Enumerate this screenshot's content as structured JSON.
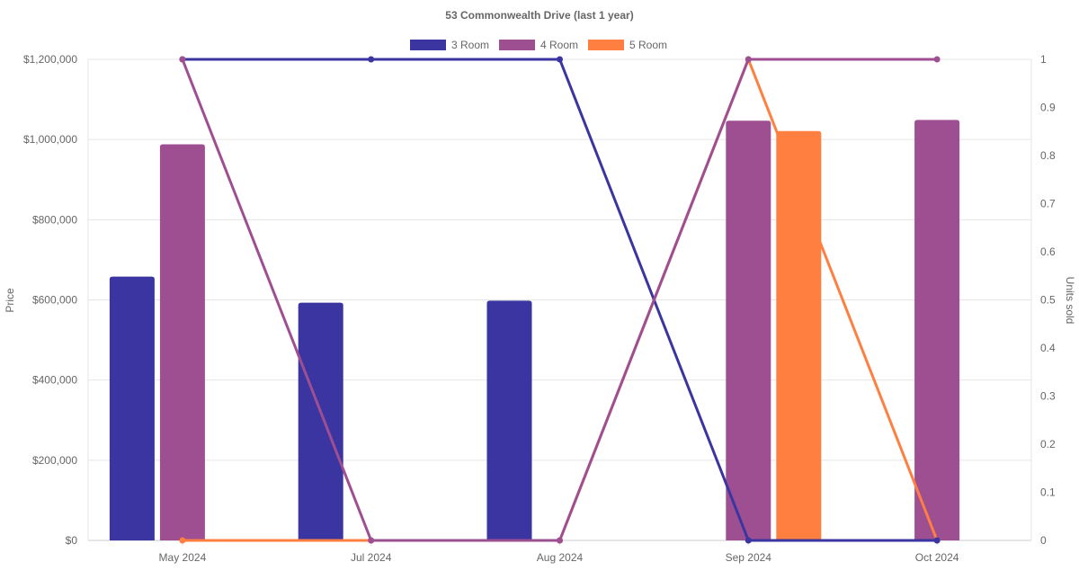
{
  "chart_data": {
    "type": "bar",
    "title": "53 Commonwealth Drive (last 1 year)",
    "categories": [
      "May 2024",
      "Jul 2024",
      "Aug 2024",
      "Sep 2024",
      "Oct 2024"
    ],
    "ylabel": "Price",
    "y2label": "Units sold",
    "ylim": [
      0,
      1200000
    ],
    "y2lim": [
      0,
      1
    ],
    "yticks": [
      "$0",
      "$200,000",
      "$400,000",
      "$600,000",
      "$800,000",
      "$1,000,000",
      "$1,200,000"
    ],
    "y2ticks": [
      "0",
      "0.1",
      "0.2",
      "0.3",
      "0.4",
      "0.5",
      "0.6",
      "0.7",
      "0.8",
      "0.9",
      "1"
    ],
    "legend_position": "top",
    "grid": true,
    "series": [
      {
        "name": "3 Room",
        "color": "#3a35a0",
        "price": [
          658000,
          593000,
          598000,
          null,
          null
        ],
        "units_sold": [
          1,
          1,
          1,
          0,
          0
        ]
      },
      {
        "name": "4 Room",
        "color": "#9e4f92",
        "price": [
          988000,
          null,
          null,
          1047000,
          1049000
        ],
        "units_sold": [
          1,
          0,
          0,
          1,
          1
        ]
      },
      {
        "name": "5 Room",
        "color": "#ff7f41",
        "price": [
          null,
          null,
          null,
          1021000,
          null
        ],
        "units_sold": [
          0,
          0,
          0,
          1,
          0
        ]
      }
    ]
  }
}
